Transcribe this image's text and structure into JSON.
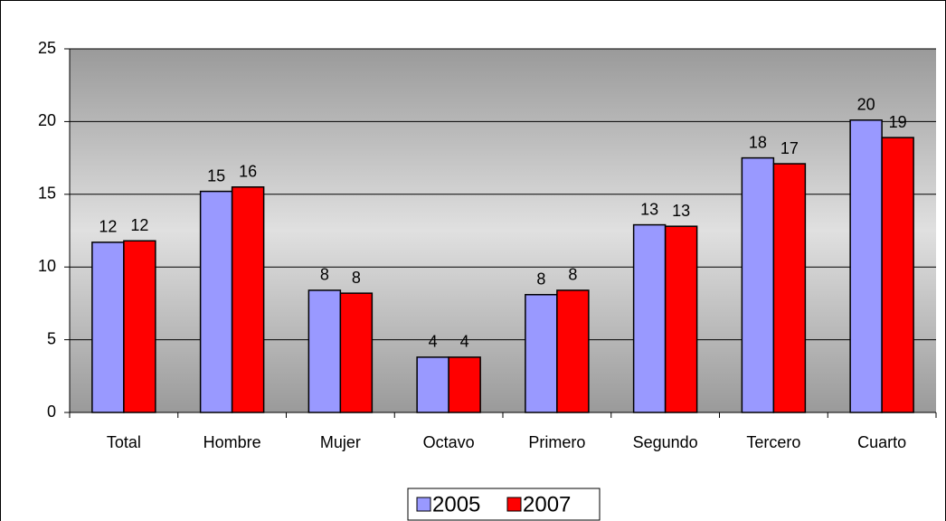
{
  "chart_data": {
    "type": "bar",
    "categories": [
      "Total",
      "Hombre",
      "Mujer",
      "Octavo",
      "Primero",
      "Segundo",
      "Tercero",
      "Cuarto"
    ],
    "series": [
      {
        "name": "2005",
        "color": "#9999ff",
        "values": [
          11.7,
          15.2,
          8.4,
          3.8,
          8.1,
          12.9,
          17.5,
          20.1
        ],
        "value_labels": [
          "12",
          "15",
          "8",
          "4",
          "8",
          "13",
          "18",
          "20"
        ]
      },
      {
        "name": "2007",
        "color": "#ff0000",
        "values": [
          11.8,
          15.5,
          8.2,
          3.8,
          8.4,
          12.8,
          17.1,
          18.9
        ],
        "value_labels": [
          "12",
          "16",
          "8",
          "4",
          "8",
          "13",
          "17",
          "19"
        ]
      }
    ],
    "ylim": [
      0,
      25
    ],
    "yticks": [
      0,
      5,
      10,
      15,
      20,
      25
    ],
    "grid": true,
    "legend": "bottom"
  }
}
